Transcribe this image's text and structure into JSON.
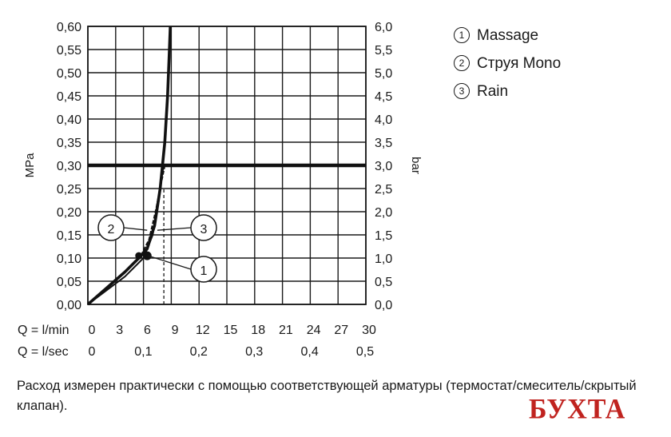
{
  "chart_data": {
    "type": "line",
    "title": "",
    "ylabel_left": "MPa",
    "ylabel_right": "bar",
    "ylim": [
      0,
      0.6
    ],
    "xlim": [
      0,
      30
    ],
    "y_ticks_left": [
      "0,00",
      "0,05",
      "0,10",
      "0,15",
      "0,20",
      "0,25",
      "0,30",
      "0,35",
      "0,40",
      "0,45",
      "0,50",
      "0,55",
      "0,60"
    ],
    "y_ticks_right": [
      "0,0",
      "0,5",
      "1,0",
      "1,5",
      "2,0",
      "2,5",
      "3,0",
      "3,5",
      "4,0",
      "4,5",
      "5,0",
      "5,5",
      "6,0"
    ],
    "x_label_lmin": "Q = l/min",
    "x_ticks_lmin": [
      "0",
      "3",
      "6",
      "9",
      "12",
      "15",
      "18",
      "21",
      "24",
      "27",
      "30"
    ],
    "x_label_lsec": "Q = l/sec",
    "x_ticks_lsec": [
      "0",
      "0,1",
      "0,2",
      "0,3",
      "0,4",
      "0,5"
    ],
    "reference_pressure": 0.3,
    "reference_flow": 8.2,
    "series": [
      {
        "name": "Massage",
        "marker": "1",
        "x": [
          0,
          2,
          4,
          6,
          7,
          7.6,
          8,
          8.2
        ],
        "y": [
          0,
          0.03,
          0.06,
          0.1,
          0.15,
          0.22,
          0.28,
          0.3
        ]
      },
      {
        "name": "Струя Mono",
        "marker": "2",
        "x": [
          0,
          2,
          4,
          5.5,
          6.4,
          7.2,
          7.8,
          8.3,
          8.6,
          8.8,
          8.9
        ],
        "y": [
          0,
          0.035,
          0.07,
          0.1,
          0.12,
          0.17,
          0.25,
          0.35,
          0.45,
          0.55,
          0.6
        ]
      },
      {
        "name": "Rain",
        "marker": "3",
        "x": [
          0,
          2,
          4,
          5.6,
          6.6,
          7.3,
          7.9,
          8.3
        ],
        "y": [
          0,
          0.035,
          0.07,
          0.1,
          0.14,
          0.2,
          0.26,
          0.3
        ]
      }
    ],
    "legend": "top-right",
    "grid": true
  },
  "legend_items": [
    {
      "num": "1",
      "label": "Massage"
    },
    {
      "num": "2",
      "label": "Струя Mono"
    },
    {
      "num": "3",
      "label": "Rain"
    }
  ],
  "note": "Расход измерен практически с помощью соответствующей арматуры (термостат/смеситель/скрытый клапан).",
  "watermark": "БУХТА"
}
